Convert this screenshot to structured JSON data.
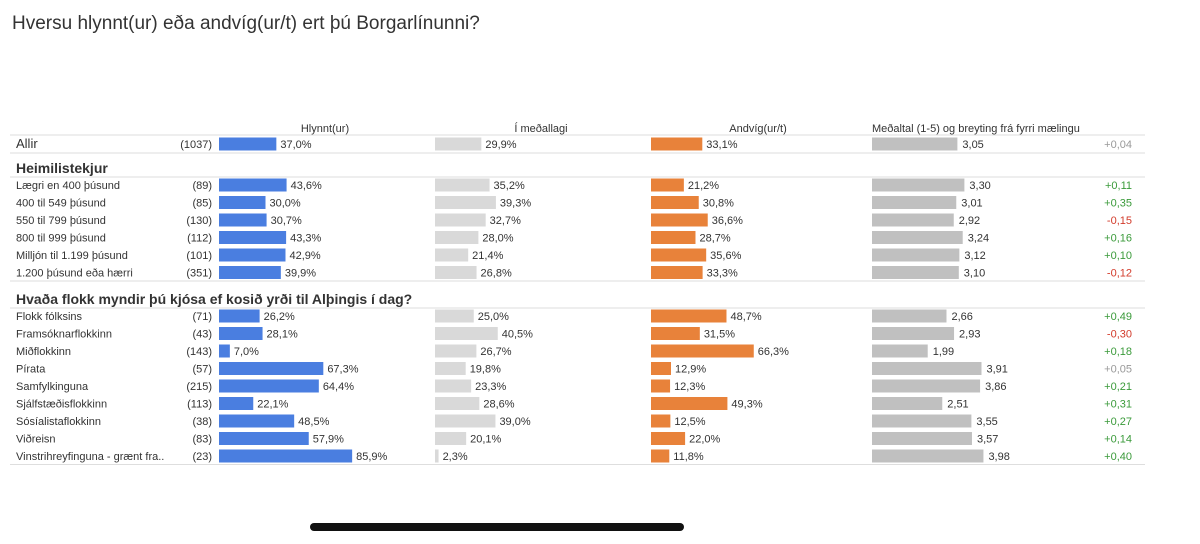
{
  "title": "Hversu hlynnt(ur) eða andvíg(ur/t) ert þú Borgarlínunni?",
  "chart_data": {
    "type": "bar",
    "columns": [
      {
        "key": "hlynnt",
        "label": "Hlynnt(ur)",
        "color": "#4a7ee0",
        "max": 100
      },
      {
        "key": "medallagi",
        "label": "Í meðallagi",
        "color": "#d9d9d9",
        "max": 100
      },
      {
        "key": "andvig",
        "label": "Andvíg(ur/t)",
        "color": "#e8823a",
        "max": 100
      },
      {
        "key": "medaltal",
        "label": "Meðaltal (1-5) og breyting frá fyrri mælingu",
        "color": "#c0c0c0",
        "max": 5
      }
    ],
    "colors": {
      "positive": "#3a9a3a",
      "negative": "#d23b2b",
      "neutral": "#999999"
    },
    "overall": {
      "label": "Allir",
      "n": "(1037)",
      "hlynnt": 37.0,
      "hlynnt_label": "37,0%",
      "medallagi": 29.9,
      "medallagi_label": "29,9%",
      "andvig": 33.1,
      "andvig_label": "33,1%",
      "mean": 3.05,
      "mean_label": "3,05",
      "change": "+0,04",
      "change_sign": "neutral"
    },
    "groups": [
      {
        "title": "Heimilistekjur",
        "rows": [
          {
            "label": "Lægri en 400 þúsund",
            "n": "(89)",
            "hlynnt": 43.6,
            "hlynnt_label": "43,6%",
            "medallagi": 35.2,
            "medallagi_label": "35,2%",
            "andvig": 21.2,
            "andvig_label": "21,2%",
            "mean": 3.3,
            "mean_label": "3,30",
            "change": "+0,11",
            "change_sign": "positive"
          },
          {
            "label": "400 til 549 þúsund",
            "n": "(85)",
            "hlynnt": 30.0,
            "hlynnt_label": "30,0%",
            "medallagi": 39.3,
            "medallagi_label": "39,3%",
            "andvig": 30.8,
            "andvig_label": "30,8%",
            "mean": 3.01,
            "mean_label": "3,01",
            "change": "+0,35",
            "change_sign": "positive"
          },
          {
            "label": "550 til 799 þúsund",
            "n": "(130)",
            "hlynnt": 30.7,
            "hlynnt_label": "30,7%",
            "medallagi": 32.7,
            "medallagi_label": "32,7%",
            "andvig": 36.6,
            "andvig_label": "36,6%",
            "mean": 2.92,
            "mean_label": "2,92",
            "change": "-0,15",
            "change_sign": "negative"
          },
          {
            "label": "800 til 999 þúsund",
            "n": "(112)",
            "hlynnt": 43.3,
            "hlynnt_label": "43,3%",
            "medallagi": 28.0,
            "medallagi_label": "28,0%",
            "andvig": 28.7,
            "andvig_label": "28,7%",
            "mean": 3.24,
            "mean_label": "3,24",
            "change": "+0,16",
            "change_sign": "positive"
          },
          {
            "label": "Milljón til 1.199 þúsund",
            "n": "(101)",
            "hlynnt": 42.9,
            "hlynnt_label": "42,9%",
            "medallagi": 21.4,
            "medallagi_label": "21,4%",
            "andvig": 35.6,
            "andvig_label": "35,6%",
            "mean": 3.12,
            "mean_label": "3,12",
            "change": "+0,10",
            "change_sign": "positive"
          },
          {
            "label": "1.200 þúsund eða hærri",
            "n": "(351)",
            "hlynnt": 39.9,
            "hlynnt_label": "39,9%",
            "medallagi": 26.8,
            "medallagi_label": "26,8%",
            "andvig": 33.3,
            "andvig_label": "33,3%",
            "mean": 3.1,
            "mean_label": "3,10",
            "change": "-0,12",
            "change_sign": "negative"
          }
        ]
      },
      {
        "title": "Hvaða flokk myndir þú kjósa ef kosið yrði til Alþingis í dag?",
        "rows": [
          {
            "label": "Flokk fólksins",
            "n": "(71)",
            "hlynnt": 26.2,
            "hlynnt_label": "26,2%",
            "medallagi": 25.0,
            "medallagi_label": "25,0%",
            "andvig": 48.7,
            "andvig_label": "48,7%",
            "mean": 2.66,
            "mean_label": "2,66",
            "change": "+0,49",
            "change_sign": "positive"
          },
          {
            "label": "Framsóknarflokkinn",
            "n": "(43)",
            "hlynnt": 28.1,
            "hlynnt_label": "28,1%",
            "medallagi": 40.5,
            "medallagi_label": "40,5%",
            "andvig": 31.5,
            "andvig_label": "31,5%",
            "mean": 2.93,
            "mean_label": "2,93",
            "change": "-0,30",
            "change_sign": "negative"
          },
          {
            "label": "Miðflokkinn",
            "n": "(143)",
            "hlynnt": 7.0,
            "hlynnt_label": "7,0%",
            "medallagi": 26.7,
            "medallagi_label": "26,7%",
            "andvig": 66.3,
            "andvig_label": "66,3%",
            "mean": 1.99,
            "mean_label": "1,99",
            "change": "+0,18",
            "change_sign": "positive"
          },
          {
            "label": "Pírata",
            "n": "(57)",
            "hlynnt": 67.3,
            "hlynnt_label": "67,3%",
            "medallagi": 19.8,
            "medallagi_label": "19,8%",
            "andvig": 12.9,
            "andvig_label": "12,9%",
            "mean": 3.91,
            "mean_label": "3,91",
            "change": "+0,05",
            "change_sign": "neutral"
          },
          {
            "label": "Samfylkinguna",
            "n": "(215)",
            "hlynnt": 64.4,
            "hlynnt_label": "64,4%",
            "medallagi": 23.3,
            "medallagi_label": "23,3%",
            "andvig": 12.3,
            "andvig_label": "12,3%",
            "mean": 3.86,
            "mean_label": "3,86",
            "change": "+0,21",
            "change_sign": "positive"
          },
          {
            "label": "Sjálfstæðisflokkinn",
            "n": "(113)",
            "hlynnt": 22.1,
            "hlynnt_label": "22,1%",
            "medallagi": 28.6,
            "medallagi_label": "28,6%",
            "andvig": 49.3,
            "andvig_label": "49,3%",
            "mean": 2.51,
            "mean_label": "2,51",
            "change": "+0,31",
            "change_sign": "positive"
          },
          {
            "label": "Sósíalistaflokkinn",
            "n": "(38)",
            "hlynnt": 48.5,
            "hlynnt_label": "48,5%",
            "medallagi": 39.0,
            "medallagi_label": "39,0%",
            "andvig": 12.5,
            "andvig_label": "12,5%",
            "mean": 3.55,
            "mean_label": "3,55",
            "change": "+0,27",
            "change_sign": "positive"
          },
          {
            "label": "Viðreisn",
            "n": "(83)",
            "hlynnt": 57.9,
            "hlynnt_label": "57,9%",
            "medallagi": 20.1,
            "medallagi_label": "20,1%",
            "andvig": 22.0,
            "andvig_label": "22,0%",
            "mean": 3.57,
            "mean_label": "3,57",
            "change": "+0,14",
            "change_sign": "positive"
          },
          {
            "label": "Vinstrihreyfinguna - grænt fra..",
            "n": "(23)",
            "hlynnt": 85.9,
            "hlynnt_label": "85,9%",
            "medallagi": 2.3,
            "medallagi_label": "2,3%",
            "andvig": 11.8,
            "andvig_label": "11,8%",
            "mean": 3.98,
            "mean_label": "3,98",
            "change": "+0,40",
            "change_sign": "positive"
          }
        ]
      }
    ]
  }
}
